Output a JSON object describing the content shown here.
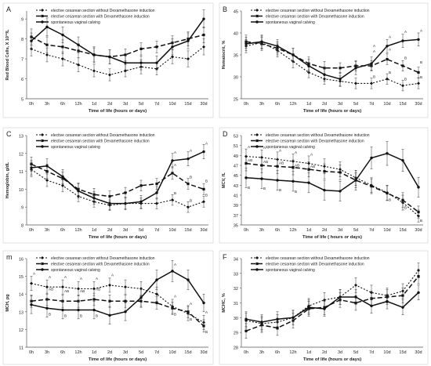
{
  "chart_data": [
    {
      "panel_label": "A",
      "type": "line",
      "ylabel": "Red Blood Cells, X 10¹²/L",
      "xlabel": "Time of life (hours or days)",
      "categories": [
        "0h",
        "3h",
        "6h",
        "12h",
        "1d",
        "2d",
        "3d",
        "5d",
        "7d",
        "10d",
        "15d",
        "30d"
      ],
      "yticks": [
        "5",
        "6",
        "7",
        "8",
        "9"
      ],
      "ylim": [
        5,
        9.4
      ],
      "legend": [
        "elective cesarean section without Dexamethasone induction",
        "elective cesarean section with Dexamethasone induction",
        "spontaneous vaginal calving"
      ],
      "series": [
        {
          "values": [
            7.5,
            7.2,
            7.0,
            6.7,
            6.4,
            6.2,
            6.4,
            6.6,
            6.5,
            7.1,
            7.0,
            7.6
          ]
        },
        {
          "values": [
            8.1,
            7.7,
            7.6,
            7.4,
            7.2,
            7.1,
            7.2,
            7.5,
            7.6,
            7.8,
            8.0,
            8.2
          ]
        },
        {
          "values": [
            7.9,
            8.6,
            8.2,
            7.7,
            7.2,
            7.1,
            6.8,
            6.8,
            6.8,
            7.6,
            7.9,
            9.0
          ]
        }
      ],
      "errors": [
        [
          0.35,
          0.35,
          0.35,
          0.35,
          0.3,
          0.3,
          0.3,
          0.35,
          0.3,
          0.35,
          0.4,
          0.4
        ],
        [
          0.4,
          0.4,
          0.35,
          0.35,
          0.35,
          0.35,
          0.3,
          0.3,
          0.3,
          0.35,
          0.35,
          0.4
        ],
        [
          0.4,
          0.45,
          0.4,
          0.4,
          0.4,
          0.35,
          0.35,
          0.35,
          0.35,
          0.4,
          0.4,
          0.45
        ]
      ],
      "annotations": []
    },
    {
      "panel_label": "B",
      "type": "line",
      "ylabel": "Hematocrit, %",
      "xlabel": "Time of life (hours or days)",
      "categories": [
        "0h",
        "3h",
        "6h",
        "12h",
        "1d",
        "2d",
        "3d",
        "5d",
        "7d",
        "10d",
        "15d",
        "30d"
      ],
      "yticks": [
        "25",
        "30",
        "35",
        "40",
        "45"
      ],
      "ylim": [
        25,
        45
      ],
      "legend": [
        "elective cesarean section without Dexamethasone induction",
        "elective cesarean section with Dexamethasone induction",
        "spontaneous vaginal calving"
      ],
      "series": [
        {
          "values": [
            37,
            37.8,
            36,
            33.5,
            31,
            29.5,
            29,
            28.5,
            28.5,
            29.5,
            28,
            28.5
          ]
        },
        {
          "values": [
            38,
            37.5,
            36.5,
            35,
            33,
            32,
            32,
            32.5,
            32.5,
            34,
            32.5,
            31
          ]
        },
        {
          "values": [
            37.5,
            38,
            37,
            35,
            32.5,
            30.5,
            29.5,
            32,
            33,
            37,
            38.2,
            38.5
          ]
        }
      ],
      "errors": [
        [
          1.5,
          1.5,
          1.5,
          1.5,
          1.2,
          1.2,
          1.2,
          1.2,
          1.2,
          1.2,
          1.2,
          1.2
        ],
        [
          1.5,
          1.5,
          1.5,
          1.5,
          1.5,
          1.5,
          1.2,
          1.2,
          1.2,
          1.2,
          1.2,
          1.2
        ],
        [
          1.5,
          1.5,
          1.5,
          1.5,
          1.5,
          1.5,
          1.5,
          1.5,
          1.5,
          1.5,
          1.5,
          1.5
        ]
      ],
      "annotations": [
        {
          "i": 8,
          "y": 36.8,
          "text": "A"
        },
        {
          "i": 9,
          "y": 38.8,
          "text": "A"
        },
        {
          "i": 10,
          "y": 40,
          "text": "A"
        },
        {
          "i": 11,
          "y": 40.3,
          "text": "A"
        },
        {
          "i": 8,
          "y": 35.5,
          "text": "A"
        },
        {
          "i": 9,
          "y": 36,
          "text": "A"
        },
        {
          "i": 10,
          "y": 34,
          "text": "B"
        },
        {
          "i": 11,
          "y": 33,
          "text": "B"
        },
        {
          "i": 8,
          "y": 29.7,
          "text": "B"
        },
        {
          "i": 9,
          "y": 30.7,
          "text": "B"
        },
        {
          "i": 10,
          "y": 29.2,
          "text": "B"
        },
        {
          "i": 11,
          "y": 29.6,
          "text": "B"
        }
      ]
    },
    {
      "panel_label": "C",
      "type": "line",
      "ylabel": "Hemoglobin, g/dL",
      "xlabel": "Time of life (hours or days)",
      "categories": [
        "0h",
        "3h",
        "6h",
        "12h",
        "1d",
        "2d",
        "3d",
        "5d",
        "7d",
        "10d",
        "15d",
        "30d"
      ],
      "yticks": [
        "8",
        "9",
        "10",
        "11",
        "12",
        "13"
      ],
      "ylim": [
        8,
        13
      ],
      "legend": [
        "elective cesarean section without Dexamethasone induction",
        "elective cesarean section with Dexamethasone induction",
        "spontaneous vaginal calving"
      ],
      "series": [
        {
          "values": [
            11.1,
            10.5,
            10.2,
            9.6,
            9.3,
            9.1,
            9.2,
            9.2,
            9.2,
            9.4,
            9.0,
            9.3
          ]
        },
        {
          "values": [
            11.4,
            11.0,
            10.6,
            10.0,
            9.7,
            9.6,
            9.8,
            10.2,
            10.3,
            10.9,
            10.3,
            10.0
          ]
        },
        {
          "values": [
            11.2,
            11.3,
            10.7,
            9.9,
            9.5,
            9.2,
            9.2,
            9.3,
            9.8,
            11.6,
            11.7,
            12.1
          ]
        }
      ],
      "errors": [
        [
          0.4,
          0.35,
          0.35,
          0.3,
          0.3,
          0.3,
          0.3,
          0.3,
          0.3,
          0.3,
          0.3,
          0.3
        ],
        [
          0.4,
          0.4,
          0.35,
          0.35,
          0.35,
          0.3,
          0.3,
          0.3,
          0.3,
          0.35,
          0.3,
          0.3
        ],
        [
          0.4,
          0.4,
          0.4,
          0.4,
          0.35,
          0.35,
          0.35,
          0.35,
          0.35,
          0.4,
          0.4,
          0.4
        ]
      ],
      "annotations": [
        {
          "i": 9,
          "y": 12.0,
          "text": "A"
        },
        {
          "i": 10,
          "y": 12.1,
          "text": "A"
        },
        {
          "i": 11,
          "y": 12.5,
          "text": "A"
        },
        {
          "i": 9,
          "y": 11.3,
          "text": "A"
        },
        {
          "i": 10,
          "y": 10.6,
          "text": "B"
        },
        {
          "i": 11,
          "y": 10.4,
          "text": "B"
        },
        {
          "i": 9,
          "y": 9.7,
          "text": "B"
        },
        {
          "i": 10,
          "y": 9.3,
          "text": "B"
        },
        {
          "i": 11,
          "y": 9.6,
          "text": "B"
        }
      ]
    },
    {
      "panel_label": "D",
      "type": "line",
      "ylabel": "MCV, fL",
      "xlabel": "Time of life ( hours or days)",
      "categories": [
        "0h",
        "3h",
        "6h",
        "12h",
        "1d",
        "2d",
        "3d",
        "5d",
        "7d",
        "10d",
        "15d",
        "30d"
      ],
      "yticks": [
        "35",
        "37",
        "39",
        "41",
        "43",
        "45",
        "47",
        "49",
        "51",
        "53"
      ],
      "ylim": [
        35,
        53
      ],
      "legend": [
        "elective cesarean section without Dexamethasone induction",
        "elective cesarean section with Dexamethasone induction",
        "spontaneous vaginal calving"
      ],
      "series": [
        {
          "values": [
            48.8,
            48.6,
            48.2,
            47.8,
            47.4,
            46.8,
            46.2,
            44.5,
            43.0,
            41.5,
            39.5,
            36.8
          ]
        },
        {
          "values": [
            47.4,
            47.0,
            46.8,
            46.6,
            46.2,
            45.8,
            45.6,
            44.0,
            42.8,
            41.4,
            40.0,
            37.6
          ]
        },
        {
          "values": [
            44.5,
            44.3,
            44.0,
            43.8,
            43.5,
            42.0,
            41.8,
            44.0,
            48.5,
            49.4,
            48.0,
            42.6
          ]
        }
      ],
      "errors": [
        [
          1.5,
          1.5,
          1.5,
          1.5,
          1.5,
          1.5,
          1.5,
          1.5,
          1.5,
          1.5,
          1.5,
          1.2
        ],
        [
          1.5,
          1.5,
          1.5,
          1.5,
          1.5,
          1.5,
          1.5,
          1.5,
          1.5,
          1.5,
          1.5,
          1.2
        ],
        [
          2.0,
          2.0,
          2.0,
          2.0,
          2.0,
          2.0,
          2.0,
          2.0,
          2.2,
          2.4,
          2.2,
          2.0
        ]
      ],
      "annotations": [
        {
          "i": 0,
          "y": 50.5,
          "text": "A"
        },
        {
          "i": 1,
          "y": 50.3,
          "text": "A"
        },
        {
          "i": 2,
          "y": 49.8,
          "text": "A"
        },
        {
          "i": 3,
          "y": 49.4,
          "text": "A"
        },
        {
          "i": 4,
          "y": 49.0,
          "text": "A"
        },
        {
          "i": 0,
          "y": 47.8,
          "text": "AB"
        },
        {
          "i": 1,
          "y": 47.5,
          "text": "AB"
        },
        {
          "i": 2,
          "y": 47.2,
          "text": "AB"
        },
        {
          "i": 3,
          "y": 46.8,
          "text": "AB"
        },
        {
          "i": 4,
          "y": 46.5,
          "text": "AB"
        },
        {
          "i": 0,
          "y": 42.3,
          "text": "B"
        },
        {
          "i": 1,
          "y": 42.1,
          "text": "B"
        },
        {
          "i": 2,
          "y": 41.8,
          "text": "B"
        },
        {
          "i": 3,
          "y": 41.5,
          "text": "B"
        },
        {
          "i": 9,
          "y": 39.8,
          "text": "B"
        },
        {
          "i": 10,
          "y": 38.2,
          "text": "B"
        },
        {
          "i": 11,
          "y": 35.6,
          "text": "B"
        }
      ]
    },
    {
      "panel_label": "m",
      "type": "line",
      "ylabel": "MCH, pg",
      "xlabel": "Time of life (hours or days)",
      "categories": [
        "0h",
        "3h",
        "6h",
        "12h",
        "1d",
        "2d",
        "3d",
        "5d",
        "7d",
        "10d",
        "15d",
        "30d"
      ],
      "yticks": [
        "11",
        "12",
        "13",
        "14",
        "15",
        "16"
      ],
      "ylim": [
        11,
        16
      ],
      "legend": [
        "elective cesarean section without Dexamethasone induction",
        "elective cesarean section with Dexamethasone induction",
        "spontaneous vaginal calving"
      ],
      "series": [
        {
          "values": [
            14.6,
            14.4,
            14.4,
            14.3,
            14.3,
            14.5,
            14.4,
            14.3,
            14.0,
            13.3,
            12.9,
            12.4
          ]
        },
        {
          "values": [
            13.6,
            13.7,
            13.6,
            13.6,
            13.7,
            13.6,
            13.6,
            13.6,
            13.5,
            13.2,
            13.0,
            12.2
          ]
        },
        {
          "values": [
            13.4,
            13.2,
            13.1,
            13.1,
            13.1,
            12.8,
            13.0,
            13.8,
            14.8,
            15.3,
            14.8,
            13.5
          ]
        }
      ],
      "errors": [
        [
          0.4,
          0.4,
          0.4,
          0.4,
          0.4,
          0.4,
          0.4,
          0.4,
          0.4,
          0.4,
          0.4,
          0.4
        ],
        [
          0.35,
          0.35,
          0.35,
          0.35,
          0.35,
          0.35,
          0.35,
          0.35,
          0.35,
          0.35,
          0.35,
          0.35
        ],
        [
          0.5,
          0.5,
          0.5,
          0.5,
          0.5,
          0.5,
          0.5,
          0.5,
          0.55,
          0.6,
          0.55,
          0.5
        ]
      ],
      "annotations": [
        {
          "i": 0,
          "y": 15.1,
          "text": "A"
        },
        {
          "i": 1,
          "y": 14.9,
          "text": "A"
        },
        {
          "i": 2,
          "y": 14.9,
          "text": "A"
        },
        {
          "i": 3,
          "y": 14.8,
          "text": "A"
        },
        {
          "i": 4,
          "y": 14.8,
          "text": "A"
        },
        {
          "i": 5,
          "y": 15.0,
          "text": "A"
        },
        {
          "i": 1,
          "y": 14.2,
          "text": "AB"
        },
        {
          "i": 2,
          "y": 14.1,
          "text": "AB"
        },
        {
          "i": 3,
          "y": 14.1,
          "text": "AB"
        },
        {
          "i": 4,
          "y": 14.2,
          "text": "AB"
        },
        {
          "i": 1,
          "y": 12.8,
          "text": "B"
        },
        {
          "i": 2,
          "y": 12.7,
          "text": "B"
        },
        {
          "i": 3,
          "y": 12.7,
          "text": "B"
        },
        {
          "i": 4,
          "y": 12.7,
          "text": "B"
        },
        {
          "i": 9,
          "y": 15.6,
          "text": "A"
        },
        {
          "i": 9,
          "y": 13.8,
          "text": "A"
        },
        {
          "i": 10,
          "y": 13.4,
          "text": "A"
        },
        {
          "i": 11,
          "y": 12.9,
          "text": "A"
        },
        {
          "i": 9,
          "y": 12.8,
          "text": "B"
        },
        {
          "i": 10,
          "y": 12.5,
          "text": "B"
        },
        {
          "i": 11,
          "y": 11.8,
          "text": "B"
        }
      ]
    },
    {
      "panel_label": "F",
      "type": "line",
      "ylabel": "MCHC, %",
      "xlabel": "Time of life (hours or days)",
      "categories": [
        "0h",
        "3h",
        "6h",
        "12h",
        "1d",
        "2d",
        "3d",
        "5d",
        "7d",
        "10d",
        "15d",
        "30d"
      ],
      "yticks": [
        "28",
        "29",
        "30",
        "31",
        "32",
        "33",
        "34"
      ],
      "ylim": [
        28,
        34
      ],
      "legend": [
        "elective cesarean section without Dexamethasone induction",
        "elective cesarean section with Dexamethasone induction",
        "spontaneous vaginal calving"
      ],
      "series": [
        {
          "values": [
            29.8,
            29.6,
            29.7,
            30.0,
            30.8,
            31.2,
            31.4,
            32.2,
            31.7,
            31.5,
            31.8,
            33.2
          ]
        },
        {
          "values": [
            29.1,
            29.5,
            29.3,
            29.8,
            30.6,
            30.7,
            31.2,
            31.0,
            31.3,
            31.4,
            31.5,
            32.8
          ]
        },
        {
          "values": [
            29.9,
            29.7,
            29.9,
            30.0,
            30.7,
            30.6,
            31.4,
            31.4,
            30.8,
            31.1,
            30.7,
            31.7
          ]
        }
      ],
      "errors": [
        [
          0.5,
          0.5,
          0.5,
          0.5,
          0.5,
          0.5,
          0.5,
          0.5,
          0.5,
          0.5,
          0.5,
          0.5
        ],
        [
          0.5,
          0.5,
          0.5,
          0.5,
          0.5,
          0.5,
          0.5,
          0.5,
          0.5,
          0.5,
          0.5,
          0.5
        ],
        [
          0.5,
          0.5,
          0.5,
          0.5,
          0.5,
          0.5,
          0.5,
          0.5,
          0.5,
          0.5,
          0.5,
          0.5
        ]
      ],
      "annotations": []
    }
  ]
}
